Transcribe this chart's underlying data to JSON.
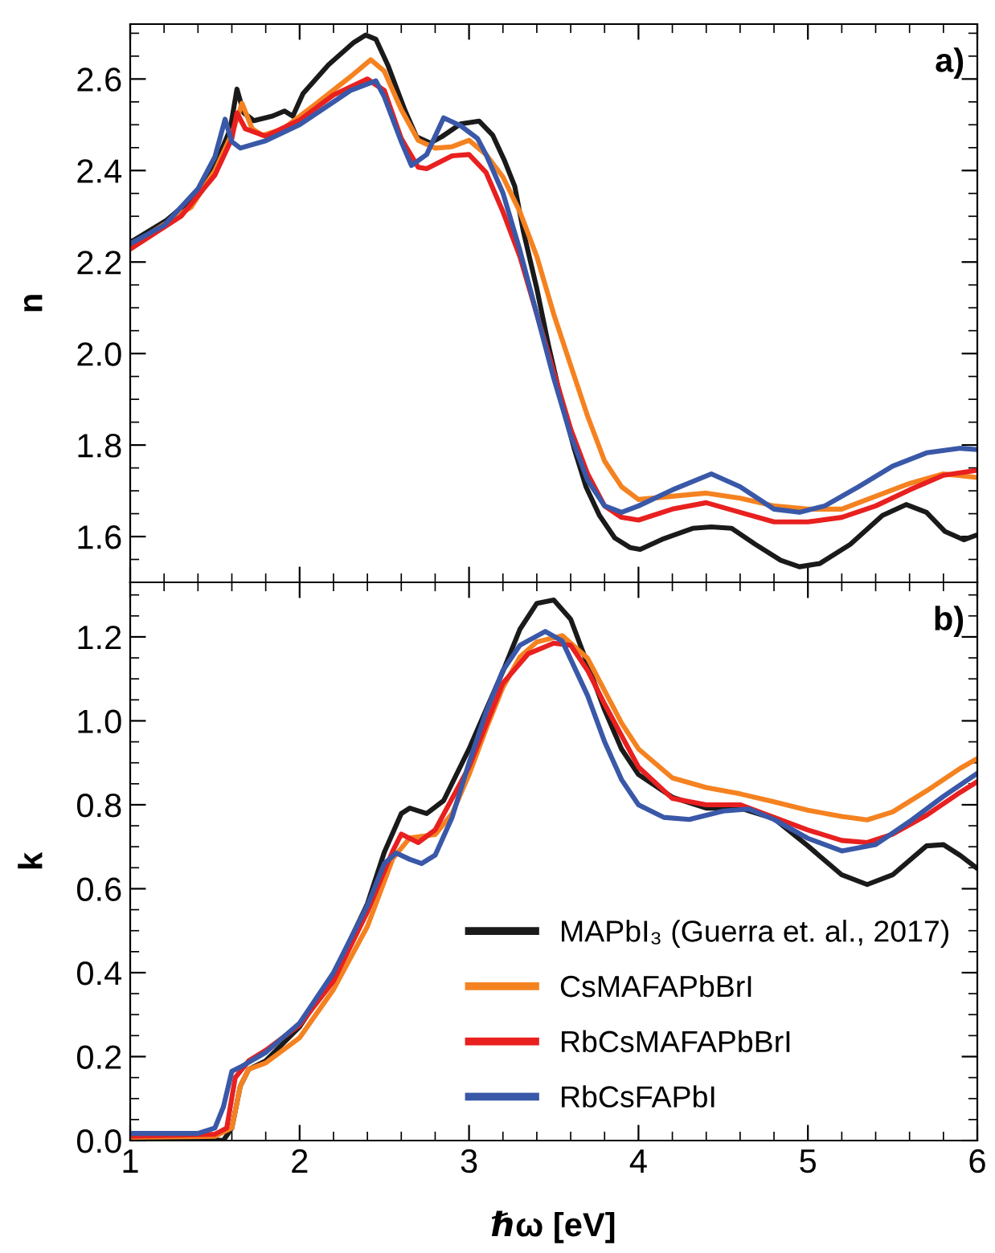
{
  "chart_data": [
    {
      "type": "line",
      "ylabel": "n",
      "annotations": [
        "a)"
      ],
      "xlim": [
        1,
        6
      ],
      "xticks": [
        1,
        2,
        3,
        4,
        5,
        6
      ],
      "ylim": [
        1.5,
        2.72
      ],
      "yticks": [
        1.6,
        1.8,
        {
          "value": 2,
          "label": "2.0"
        },
        2.2,
        2.4,
        2.6
      ],
      "tick_labels": "y",
      "grid": false,
      "legend": false,
      "series": [
        {
          "color": "#1a1a1a",
          "x": [
            1.0,
            1.21,
            1.36,
            1.5,
            1.59,
            1.63,
            1.67,
            1.73,
            1.84,
            1.91,
            1.96,
            2.02,
            2.17,
            2.32,
            2.39,
            2.45,
            2.52,
            2.62,
            2.69,
            2.77,
            2.84,
            2.95,
            3.06,
            3.14,
            3.21,
            3.27,
            3.32,
            3.4,
            3.47,
            3.54,
            3.62,
            3.69,
            3.77,
            3.86,
            3.95,
            4.01,
            4.14,
            4.32,
            4.43,
            4.55,
            4.69,
            4.84,
            4.95,
            5.07,
            5.25,
            5.44,
            5.58,
            5.7,
            5.81,
            5.92,
            6.0
          ],
          "values": [
            2.243,
            2.29,
            2.337,
            2.41,
            2.49,
            2.578,
            2.526,
            2.509,
            2.519,
            2.53,
            2.519,
            2.568,
            2.631,
            2.68,
            2.696,
            2.687,
            2.631,
            2.533,
            2.474,
            2.46,
            2.474,
            2.502,
            2.508,
            2.477,
            2.421,
            2.365,
            2.268,
            2.142,
            2.016,
            1.904,
            1.793,
            1.709,
            1.646,
            1.597,
            1.576,
            1.572,
            1.594,
            1.618,
            1.621,
            1.618,
            1.583,
            1.548,
            1.534,
            1.541,
            1.583,
            1.646,
            1.67,
            1.653,
            1.611,
            1.593,
            1.604
          ]
        },
        {
          "color": "#f58220",
          "x": [
            1.0,
            1.36,
            1.5,
            1.6,
            1.66,
            1.72,
            1.78,
            1.9,
            2.1,
            2.3,
            2.42,
            2.5,
            2.6,
            2.7,
            2.8,
            2.9,
            3.0,
            3.1,
            3.2,
            3.3,
            3.4,
            3.5,
            3.6,
            3.7,
            3.8,
            3.9,
            4.0,
            4.2,
            4.4,
            4.6,
            4.8,
            5.0,
            5.2,
            5.4,
            5.6,
            5.8,
            6.0
          ],
          "values": [
            2.235,
            2.32,
            2.4,
            2.48,
            2.547,
            2.491,
            2.477,
            2.49,
            2.547,
            2.605,
            2.642,
            2.617,
            2.533,
            2.466,
            2.449,
            2.452,
            2.466,
            2.435,
            2.386,
            2.31,
            2.212,
            2.086,
            1.974,
            1.863,
            1.765,
            1.709,
            1.681,
            1.688,
            1.695,
            1.684,
            1.667,
            1.66,
            1.66,
            1.688,
            1.716,
            1.737,
            1.729
          ]
        },
        {
          "color": "#e8201f",
          "x": [
            1.0,
            1.3,
            1.5,
            1.6,
            1.63,
            1.68,
            1.8,
            2.0,
            2.2,
            2.4,
            2.5,
            2.6,
            2.7,
            2.75,
            2.9,
            3.0,
            3.1,
            3.2,
            3.3,
            3.4,
            3.5,
            3.6,
            3.7,
            3.8,
            3.9,
            4.0,
            4.2,
            4.4,
            4.6,
            4.8,
            5.0,
            5.2,
            5.4,
            5.6,
            5.8,
            6.0
          ],
          "values": [
            2.228,
            2.3,
            2.39,
            2.47,
            2.526,
            2.491,
            2.475,
            2.51,
            2.565,
            2.6,
            2.575,
            2.47,
            2.407,
            2.404,
            2.432,
            2.435,
            2.396,
            2.31,
            2.212,
            2.086,
            1.96,
            1.835,
            1.737,
            1.667,
            1.642,
            1.636,
            1.66,
            1.674,
            1.653,
            1.632,
            1.632,
            1.642,
            1.667,
            1.702,
            1.734,
            1.745
          ]
        },
        {
          "color": "#3a58a8",
          "x": [
            1.0,
            1.2,
            1.4,
            1.5,
            1.56,
            1.6,
            1.65,
            1.8,
            2.0,
            2.2,
            2.3,
            2.45,
            2.5,
            2.6,
            2.66,
            2.75,
            2.85,
            2.95,
            3.05,
            3.1,
            3.2,
            3.3,
            3.4,
            3.5,
            3.6,
            3.7,
            3.8,
            3.9,
            4.0,
            4.2,
            4.43,
            4.6,
            4.8,
            4.95,
            5.1,
            5.3,
            5.5,
            5.7,
            5.9,
            6.0
          ],
          "values": [
            2.24,
            2.28,
            2.36,
            2.43,
            2.512,
            2.463,
            2.449,
            2.465,
            2.5,
            2.55,
            2.575,
            2.596,
            2.561,
            2.463,
            2.411,
            2.435,
            2.515,
            2.498,
            2.47,
            2.435,
            2.351,
            2.226,
            2.086,
            1.946,
            1.821,
            1.723,
            1.667,
            1.653,
            1.667,
            1.702,
            1.737,
            1.709,
            1.66,
            1.653,
            1.667,
            1.709,
            1.754,
            1.783,
            1.793,
            1.79
          ]
        }
      ]
    },
    {
      "type": "line",
      "xlabel": "ℏω [eV]",
      "ylabel": "k",
      "annotations": [
        "b)"
      ],
      "xlim": [
        1,
        6
      ],
      "xticks": [
        1,
        2,
        3,
        4,
        5,
        6
      ],
      "ylim": [
        0,
        1.33
      ],
      "yticks": [
        {
          "value": 0,
          "label": "0.0"
        },
        0.2,
        0.4,
        0.6,
        0.8,
        {
          "value": 1,
          "label": "1.0"
        },
        1.2
      ],
      "grid": false,
      "legend": "bottom right",
      "series": [
        {
          "name": "MAPbI₃ (Guerra et. al., 2017)",
          "color": "#1a1a1a",
          "x": [
            1.0,
            1.4,
            1.55,
            1.6,
            1.65,
            1.7,
            1.8,
            2.0,
            2.2,
            2.4,
            2.5,
            2.6,
            2.65,
            2.75,
            2.85,
            3.0,
            3.1,
            3.2,
            3.3,
            3.4,
            3.5,
            3.6,
            3.7,
            3.8,
            3.9,
            4.0,
            4.2,
            4.4,
            4.6,
            4.8,
            5.0,
            5.2,
            5.35,
            5.5,
            5.7,
            5.8,
            5.9,
            6.0
          ],
          "values": [
            0.005,
            0.005,
            0.0,
            0.03,
            0.13,
            0.17,
            0.19,
            0.271,
            0.394,
            0.564,
            0.687,
            0.779,
            0.792,
            0.779,
            0.81,
            0.933,
            1.026,
            1.118,
            1.218,
            1.28,
            1.288,
            1.242,
            1.134,
            1.026,
            0.933,
            0.872,
            0.818,
            0.792,
            0.792,
            0.767,
            0.702,
            0.633,
            0.61,
            0.633,
            0.702,
            0.705,
            0.679,
            0.648
          ]
        },
        {
          "name": "CsMAFAPbBrI",
          "color": "#f58220",
          "x": [
            1.0,
            1.5,
            1.6,
            1.65,
            1.7,
            1.8,
            2.0,
            2.2,
            2.4,
            2.55,
            2.65,
            2.8,
            2.9,
            3.0,
            3.1,
            3.2,
            3.3,
            3.4,
            3.55,
            3.7,
            3.8,
            3.9,
            4.0,
            4.2,
            4.4,
            4.6,
            4.8,
            5.0,
            5.2,
            5.35,
            5.5,
            5.7,
            5.9,
            6.0
          ],
          "values": [
            0.008,
            0.01,
            0.03,
            0.13,
            0.17,
            0.185,
            0.245,
            0.36,
            0.51,
            0.672,
            0.721,
            0.729,
            0.779,
            0.872,
            0.98,
            1.08,
            1.152,
            1.188,
            1.203,
            1.149,
            1.072,
            0.995,
            0.933,
            0.864,
            0.841,
            0.826,
            0.807,
            0.787,
            0.772,
            0.764,
            0.783,
            0.833,
            0.887,
            0.91
          ]
        },
        {
          "name": "RbCsMAFAPbBrI",
          "color": "#e8201f",
          "x": [
            1.0,
            1.5,
            1.57,
            1.62,
            1.7,
            1.8,
            2.0,
            2.2,
            2.4,
            2.55,
            2.6,
            2.7,
            2.8,
            3.0,
            3.2,
            3.35,
            3.5,
            3.6,
            3.7,
            3.8,
            4.0,
            4.2,
            4.4,
            4.6,
            4.8,
            5.0,
            5.2,
            5.35,
            5.5,
            5.7,
            5.9,
            6.0
          ],
          "values": [
            0.01,
            0.015,
            0.03,
            0.15,
            0.19,
            0.215,
            0.275,
            0.38,
            0.545,
            0.69,
            0.73,
            0.71,
            0.74,
            0.89,
            1.09,
            1.16,
            1.185,
            1.18,
            1.12,
            1.04,
            0.89,
            0.815,
            0.8,
            0.8,
            0.77,
            0.74,
            0.715,
            0.71,
            0.73,
            0.775,
            0.83,
            0.855
          ]
        },
        {
          "name": "RbCsFAPbI",
          "color": "#3a58a8",
          "x": [
            1.0,
            1.4,
            1.5,
            1.55,
            1.6,
            1.65,
            1.8,
            2.0,
            2.2,
            2.4,
            2.5,
            2.57,
            2.65,
            2.72,
            2.8,
            2.9,
            3.0,
            3.1,
            3.2,
            3.3,
            3.45,
            3.55,
            3.7,
            3.8,
            3.9,
            4.0,
            4.15,
            4.3,
            4.5,
            4.65,
            4.8,
            5.0,
            5.2,
            5.4,
            5.6,
            5.8,
            6.0
          ],
          "values": [
            0.017,
            0.017,
            0.03,
            0.08,
            0.165,
            0.175,
            0.21,
            0.28,
            0.4,
            0.56,
            0.66,
            0.685,
            0.67,
            0.66,
            0.68,
            0.77,
            0.9,
            1.02,
            1.12,
            1.18,
            1.213,
            1.19,
            1.06,
            0.95,
            0.86,
            0.8,
            0.77,
            0.765,
            0.785,
            0.79,
            0.765,
            0.72,
            0.69,
            0.705,
            0.76,
            0.82,
            0.875
          ]
        }
      ]
    }
  ]
}
